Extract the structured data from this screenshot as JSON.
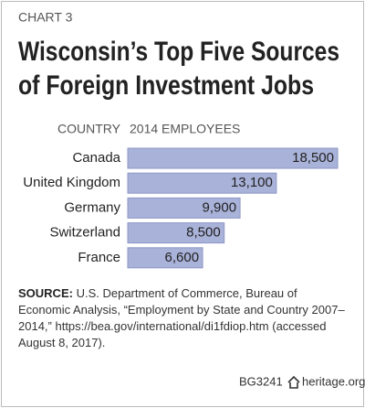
{
  "chart_data": {
    "type": "bar",
    "orientation": "horizontal",
    "label": "CHART 3",
    "title": [
      "Wisconsin’s Top Five Sources",
      "of Foreign Investment Jobs"
    ],
    "category_header": "COUNTRY",
    "value_header": "2014 EMPLOYEES",
    "categories": [
      "Canada",
      "United Kingdom",
      "Germany",
      "Switzerland",
      "France"
    ],
    "values": [
      18500,
      13100,
      9900,
      8500,
      6600
    ],
    "value_labels": [
      "18,500",
      "13,100",
      "9,900",
      "8,500",
      "6,600"
    ],
    "color": "#a9b2d8",
    "source_label": "SOURCE:",
    "source": "U.S. Department of Commerce, Bureau of Economic Analysis, “Employment by State and Country 2007–2014,” https://bea.gov/international/di1fdiop.htm (accessed August 8, 2017).",
    "report_id": "BG3241",
    "site": "heritage.org"
  }
}
